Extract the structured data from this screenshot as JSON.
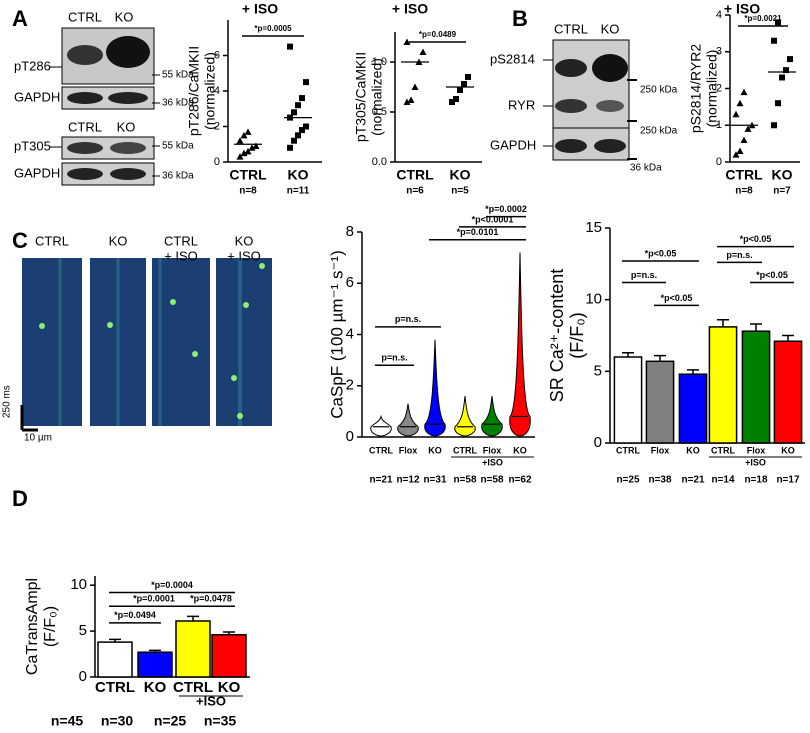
{
  "panel_labels": [
    "A",
    "B",
    "C",
    "D"
  ],
  "blots": [
    {
      "lanes": [
        "CTRL",
        "KO"
      ],
      "bands": [
        "pT286",
        "GAPDH"
      ],
      "markers": [
        "55 kDa",
        "36 kDa"
      ]
    },
    {
      "lanes": [
        "CTRL",
        "KO"
      ],
      "bands": [
        "pT305",
        "GAPDH"
      ],
      "markers": [
        "55 kDa",
        "36 kDa"
      ]
    },
    {
      "lanes": [
        "CTRL",
        "KO"
      ],
      "bands": [
        "pS2814",
        "RYR",
        "GAPDH"
      ],
      "markers": [
        "250 kDa",
        "250 kDa",
        "36 kDa"
      ]
    }
  ],
  "imaging": {
    "conditions": [
      [
        "CTRL"
      ],
      [
        "KO"
      ],
      [
        "CTRL",
        "+ ISO"
      ],
      [
        "KO",
        "+ ISO"
      ]
    ],
    "scale_time": "250 ms",
    "scale_space": "10 µm"
  },
  "chart_data": [
    {
      "type": "scatter",
      "title": "+ ISO",
      "y_label": [
        "pT286/CaMKII",
        "(normalized)"
      ],
      "categories": [
        "CTRL",
        "KO"
      ],
      "n_labels": [
        "n=8",
        "n=11"
      ],
      "values": [
        [
          0.3,
          0.5,
          0.6,
          0.8,
          0.9,
          1.2,
          1.5,
          1.7
        ],
        [
          0.8,
          1.2,
          1.5,
          1.8,
          2.0,
          2.5,
          2.8,
          3.2,
          3.6,
          4.5,
          6.5
        ]
      ],
      "means": [
        1.0,
        2.5
      ],
      "ylim": [
        0,
        8
      ],
      "yticks": [
        0,
        2,
        4,
        6
      ],
      "annotations": [
        "*p=0.0005"
      ]
    },
    {
      "type": "scatter",
      "title": "+ ISO",
      "y_label": [
        "pT305/CaMKII",
        "(normalized)"
      ],
      "categories": [
        "CTRL",
        "KO"
      ],
      "n_labels": [
        "n=6",
        "n=5"
      ],
      "values": [
        [
          0.6,
          0.62,
          0.75,
          1.0,
          1.1,
          1.2
        ],
        [
          0.6,
          0.63,
          0.72,
          0.78,
          0.85
        ]
      ],
      "means": [
        1.0,
        0.75
      ],
      "ylim": [
        0,
        1.3
      ],
      "yticks": [
        {
          "value": 0,
          "label": "0.0"
        },
        0.5,
        {
          "value": 1,
          "label": "1.0"
        }
      ],
      "annotations": [
        "*p=0.0489"
      ]
    },
    {
      "type": "scatter",
      "title": "+ ISO",
      "y_label": [
        "pS2814/RYR2",
        "(normalized)"
      ],
      "categories": [
        "CTRL",
        "KO"
      ],
      "n_labels": [
        "n=8",
        "n=7"
      ],
      "values": [
        [
          0.2,
          0.3,
          0.6,
          0.9,
          1.0,
          1.3,
          1.6,
          1.9
        ],
        [
          1.0,
          1.6,
          2.3,
          2.5,
          2.8,
          3.3,
          3.8
        ]
      ],
      "means": [
        1.0,
        2.45
      ],
      "ylim": [
        0,
        4
      ],
      "yticks": [
        0,
        1,
        2,
        3,
        4
      ],
      "annotations": [
        "*p=0.0021"
      ]
    },
    {
      "type": "violin",
      "y_label": [
        "CaSpF (100 µm⁻¹ s⁻¹)"
      ],
      "categories": [
        "CTRL",
        "Flox",
        "KO",
        "CTRL",
        "Flox",
        "KO"
      ],
      "group_label": "+ISO",
      "n_labels": [
        "n=21",
        "n=12",
        "n=31",
        "n=58",
        "n=58",
        "n=62"
      ],
      "medians": [
        0.4,
        0.4,
        0.5,
        0.4,
        0.5,
        0.8
      ],
      "max": [
        0.8,
        1.3,
        3.8,
        1.6,
        1.6,
        7.2
      ],
      "colors": [
        "#ffffff",
        "#888888",
        "#0000ff",
        "#ffff00",
        "#008000",
        "#ff0000"
      ],
      "ylim": [
        0,
        8
      ],
      "yticks": [
        0,
        2,
        4,
        6,
        8
      ],
      "annotations": [
        "p=n.s.",
        "p=n.s.",
        "*p=0.0101",
        "*p<0.0001",
        "*p=0.0002"
      ]
    },
    {
      "type": "bar",
      "y_label": [
        "SR Ca²⁺-content",
        "(F/F₀)"
      ],
      "categories": [
        "CTRL",
        "Flox",
        "KO",
        "CTRL",
        "Flox",
        "KO"
      ],
      "group_label": "+ISO",
      "n_labels": [
        "n=25",
        "n=38",
        "n=21",
        "n=14",
        "n=18",
        "n=17"
      ],
      "values": [
        6.0,
        5.7,
        4.8,
        8.1,
        7.8,
        7.1
      ],
      "errors": [
        0.3,
        0.4,
        0.3,
        0.5,
        0.5,
        0.4
      ],
      "colors": [
        "#ffffff",
        "#808080",
        "#0000ff",
        "#ffff00",
        "#008000",
        "#ff0000"
      ],
      "ylim": [
        0,
        15
      ],
      "yticks": [
        0,
        5,
        10,
        15
      ],
      "annotations": [
        "*p<0.05",
        "p=n.s.",
        "*p<0.05",
        "*p<0.05",
        "p=n.s.",
        "*p<0.05"
      ]
    },
    {
      "type": "bar",
      "y_label": [
        "CaTransAmpl",
        "(F/F₀)"
      ],
      "categories": [
        "CTRL",
        "KO",
        "CTRL",
        "KO"
      ],
      "group_label": "+ISO",
      "n_labels": [
        "n=45",
        "n=30",
        "n=25",
        "n=35"
      ],
      "values": [
        3.8,
        2.7,
        6.1,
        4.6
      ],
      "errors": [
        0.3,
        0.2,
        0.5,
        0.3
      ],
      "colors": [
        "#ffffff",
        "#0000ff",
        "#ffff00",
        "#ff0000"
      ],
      "ylim": [
        0,
        11
      ],
      "yticks": [
        0,
        5,
        10
      ],
      "annotations": [
        "*p=0.0494",
        "*p=0.0001",
        "*p=0.0004",
        "*p=0.0478"
      ]
    }
  ]
}
